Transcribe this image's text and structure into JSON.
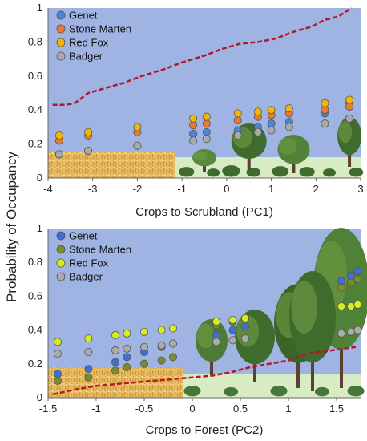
{
  "ylabel": "Probability of Occupancy",
  "colors": {
    "plot_bg": "#9fb4e3",
    "trend_line": "#b5162a",
    "crop_field": "#e3b25a",
    "ground": "#d8ecc4",
    "tree_dark": "#3f6b2d",
    "tree_light": "#6f9d45"
  },
  "chart_data": [
    {
      "type": "scatter",
      "xlabel": "Crops to Scrubland (PC1)",
      "xlim": [
        -4,
        3
      ],
      "ylim": [
        0,
        1
      ],
      "xticks": [
        "-4",
        "-3",
        "-2",
        "-1",
        "0",
        "1",
        "2",
        "3"
      ],
      "yticks": [
        "0",
        "0.2",
        "0.4",
        "0.6",
        "0.8",
        "1"
      ],
      "legend": "top-left",
      "trend_line": {
        "x": [
          -3.9,
          -3.6,
          -3.4,
          -3.1,
          -2.7,
          -2.3,
          -1.9,
          -1.4,
          -1.0,
          -0.5,
          -0.1,
          0.3,
          0.7,
          1.1,
          1.5,
          1.9,
          2.2,
          2.5,
          2.8
        ],
        "y": [
          0.43,
          0.43,
          0.44,
          0.5,
          0.53,
          0.56,
          0.6,
          0.64,
          0.68,
          0.72,
          0.76,
          0.79,
          0.8,
          0.82,
          0.86,
          0.89,
          0.93,
          0.95,
          1.0
        ]
      },
      "series": [
        {
          "name": "Genet",
          "color": "#4a85d6",
          "x": [
            -3.75,
            -3.1,
            -2.0,
            -0.75,
            -0.45,
            0.25,
            0.7,
            1.0,
            1.4,
            2.2,
            2.75
          ],
          "y": [
            0.14,
            0.16,
            0.19,
            0.26,
            0.27,
            0.28,
            0.3,
            0.32,
            0.33,
            0.38,
            0.44
          ]
        },
        {
          "name": "Stone Marten",
          "color": "#ea7a2f",
          "x": [
            -3.75,
            -3.1,
            -2.0,
            -0.75,
            -0.45,
            0.25,
            0.7,
            1.0,
            1.4,
            2.2,
            2.75
          ],
          "y": [
            0.22,
            0.25,
            0.27,
            0.31,
            0.32,
            0.34,
            0.36,
            0.37,
            0.38,
            0.4,
            0.42
          ]
        },
        {
          "name": "Red Fox",
          "color": "#f2b705",
          "x": [
            -3.75,
            -3.1,
            -2.0,
            -0.75,
            -0.45,
            0.25,
            0.7,
            1.0,
            1.4,
            2.2,
            2.75
          ],
          "y": [
            0.25,
            0.27,
            0.3,
            0.35,
            0.36,
            0.38,
            0.39,
            0.4,
            0.41,
            0.44,
            0.46
          ]
        },
        {
          "name": "Badger",
          "color": "#a9a9a9",
          "x": [
            -3.75,
            -3.1,
            -2.0,
            -0.75,
            -0.45,
            0.25,
            0.7,
            1.0,
            1.4,
            2.2,
            2.75
          ],
          "y": [
            0.14,
            0.16,
            0.19,
            0.22,
            0.23,
            0.25,
            0.27,
            0.28,
            0.3,
            0.32,
            0.35
          ]
        }
      ]
    },
    {
      "type": "scatter",
      "xlabel": "Crops to Forest (PC2)",
      "xlim": [
        -1.5,
        1.75
      ],
      "ylim": [
        0,
        1
      ],
      "xticks": [
        "-1.5",
        "-1",
        "-0.5",
        "0",
        "0.5",
        "1",
        "1.5"
      ],
      "xtick_values": [
        -1.5,
        -1,
        -0.5,
        0,
        0.5,
        1,
        1.5
      ],
      "yticks": [
        "0",
        "0.2",
        "0.4",
        "0.6",
        "0.8",
        "1"
      ],
      "legend": "top-left",
      "trend_line": {
        "x": [
          -1.45,
          -1.2,
          -1.0,
          -0.8,
          -0.6,
          -0.4,
          -0.2,
          0.0,
          0.2,
          0.4,
          0.6,
          0.8,
          1.0,
          1.2,
          1.45,
          1.7
        ],
        "y": [
          0.02,
          0.05,
          0.07,
          0.08,
          0.09,
          0.1,
          0.11,
          0.12,
          0.13,
          0.15,
          0.18,
          0.2,
          0.22,
          0.26,
          0.28,
          0.3
        ]
      },
      "series": [
        {
          "name": "Genet",
          "color": "#3f6fd1",
          "x": [
            -1.4,
            -1.08,
            -0.8,
            -0.68,
            -0.5,
            -0.32,
            -0.2,
            0.25,
            0.42,
            0.55,
            1.55,
            1.65,
            1.72
          ],
          "y": [
            0.14,
            0.17,
            0.21,
            0.24,
            0.27,
            0.3,
            0.32,
            0.37,
            0.4,
            0.42,
            0.69,
            0.72,
            0.75
          ]
        },
        {
          "name": "Stone Marten",
          "color": "#7b8c2a",
          "x": [
            -1.4,
            -1.08,
            -0.8,
            -0.68,
            -0.5,
            -0.32,
            -0.2,
            0.25,
            0.42,
            0.55,
            1.55,
            1.65,
            1.72
          ],
          "y": [
            0.1,
            0.12,
            0.16,
            0.18,
            0.2,
            0.22,
            0.24,
            0.43,
            0.45,
            0.47,
            0.65,
            0.68,
            0.7
          ]
        },
        {
          "name": "Red Fox",
          "color": "#d6ee1b",
          "x": [
            -1.4,
            -1.08,
            -0.8,
            -0.68,
            -0.5,
            -0.32,
            -0.2,
            0.25,
            0.42,
            0.55,
            1.55,
            1.65,
            1.72
          ],
          "y": [
            0.33,
            0.35,
            0.37,
            0.38,
            0.39,
            0.4,
            0.41,
            0.45,
            0.46,
            0.47,
            0.54,
            0.54,
            0.55
          ]
        },
        {
          "name": "Badger",
          "color": "#ababab",
          "x": [
            -1.4,
            -1.08,
            -0.8,
            -0.68,
            -0.5,
            -0.32,
            -0.2,
            0.25,
            0.42,
            0.55,
            1.55,
            1.65,
            1.72
          ],
          "y": [
            0.26,
            0.27,
            0.28,
            0.29,
            0.3,
            0.31,
            0.32,
            0.33,
            0.34,
            0.35,
            0.38,
            0.39,
            0.4
          ]
        }
      ]
    }
  ]
}
